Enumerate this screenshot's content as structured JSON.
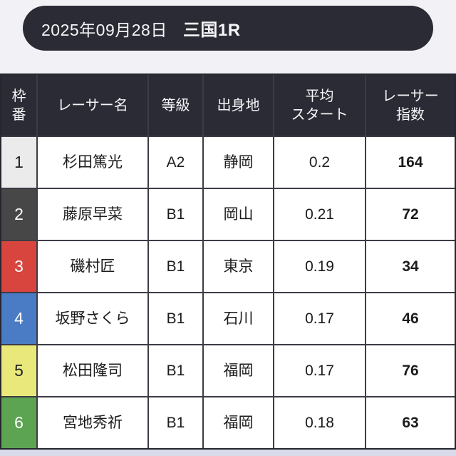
{
  "header": {
    "date": "2025年09月28日",
    "race": "三国1R"
  },
  "table": {
    "columns": {
      "frame": "枠\n番",
      "name": "レーサー名",
      "grade": "等級",
      "origin": "出身地",
      "avg_start": "平均\nスタート",
      "index": "レーサー\n指数"
    },
    "rows": [
      {
        "number": "1",
        "name": "杉田篤光",
        "grade": "A2",
        "origin": "静岡",
        "avg_start": "0.2",
        "index": "164",
        "color": "#ebebeb",
        "number_color": "#222222"
      },
      {
        "number": "2",
        "name": "藤原早菜",
        "grade": "B1",
        "origin": "岡山",
        "avg_start": "0.21",
        "index": "72",
        "color": "#474747",
        "number_color": "#ffffff"
      },
      {
        "number": "3",
        "name": "磯村匠",
        "grade": "B1",
        "origin": "東京",
        "avg_start": "0.19",
        "index": "34",
        "color": "#d8453e",
        "number_color": "#ffffff"
      },
      {
        "number": "4",
        "name": "坂野さくら",
        "grade": "B1",
        "origin": "石川",
        "avg_start": "0.17",
        "index": "46",
        "color": "#4a7cc5",
        "number_color": "#ffffff"
      },
      {
        "number": "5",
        "name": "松田隆司",
        "grade": "B1",
        "origin": "福岡",
        "avg_start": "0.17",
        "index": "76",
        "color": "#e9e87b",
        "number_color": "#222222"
      },
      {
        "number": "6",
        "name": "宮地秀祈",
        "grade": "B1",
        "origin": "福岡",
        "avg_start": "0.18",
        "index": "63",
        "color": "#5ca452",
        "number_color": "#ffffff"
      }
    ]
  },
  "colors": {
    "header_bg": "#2b2b35",
    "page_bg": "#f2f2f6",
    "bottom_strip": "#d9daea"
  }
}
